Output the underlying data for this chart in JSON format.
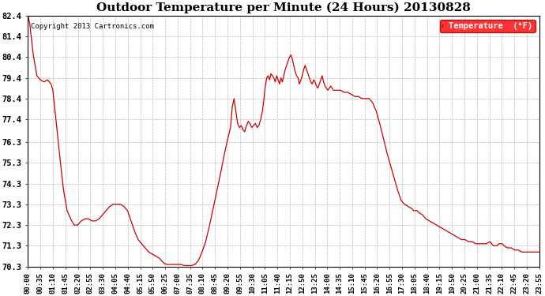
{
  "title": "Outdoor Temperature per Minute (24 Hours) 20130828",
  "copyright_text": "Copyright 2013 Cartronics.com",
  "legend_label": "Temperature  (°F)",
  "line_color": "#cc0000",
  "background_color": "#ffffff",
  "grid_color": "#bbbbbb",
  "ylim": [
    70.3,
    82.4
  ],
  "yticks": [
    70.3,
    71.3,
    72.3,
    73.3,
    74.3,
    75.3,
    76.3,
    77.4,
    78.4,
    79.4,
    80.4,
    81.4,
    82.4
  ],
  "xtick_labels": [
    "00:00",
    "00:35",
    "01:10",
    "01:45",
    "02:20",
    "02:55",
    "03:30",
    "04:05",
    "04:40",
    "05:15",
    "05:50",
    "06:25",
    "07:00",
    "07:35",
    "08:10",
    "08:45",
    "09:20",
    "09:55",
    "10:30",
    "11:05",
    "11:40",
    "12:15",
    "12:50",
    "13:25",
    "14:00",
    "14:35",
    "15:10",
    "15:45",
    "16:20",
    "16:55",
    "17:30",
    "18:05",
    "18:40",
    "19:15",
    "19:50",
    "20:25",
    "21:00",
    "21:35",
    "22:10",
    "22:45",
    "23:20",
    "23:55"
  ],
  "total_minutes": 1440,
  "key_points": [
    [
      0,
      82.4
    ],
    [
      5,
      82.0
    ],
    [
      15,
      80.5
    ],
    [
      25,
      79.5
    ],
    [
      35,
      79.3
    ],
    [
      45,
      79.2
    ],
    [
      55,
      79.3
    ],
    [
      65,
      79.1
    ],
    [
      70,
      78.8
    ],
    [
      80,
      77.2
    ],
    [
      90,
      75.5
    ],
    [
      100,
      74.0
    ],
    [
      110,
      73.0
    ],
    [
      120,
      72.6
    ],
    [
      130,
      72.3
    ],
    [
      140,
      72.3
    ],
    [
      150,
      72.5
    ],
    [
      160,
      72.6
    ],
    [
      170,
      72.6
    ],
    [
      180,
      72.5
    ],
    [
      190,
      72.5
    ],
    [
      200,
      72.6
    ],
    [
      210,
      72.8
    ],
    [
      220,
      73.0
    ],
    [
      230,
      73.2
    ],
    [
      240,
      73.3
    ],
    [
      250,
      73.3
    ],
    [
      260,
      73.3
    ],
    [
      270,
      73.2
    ],
    [
      280,
      73.0
    ],
    [
      290,
      72.5
    ],
    [
      300,
      72.0
    ],
    [
      310,
      71.6
    ],
    [
      320,
      71.4
    ],
    [
      330,
      71.2
    ],
    [
      340,
      71.0
    ],
    [
      350,
      70.9
    ],
    [
      360,
      70.8
    ],
    [
      370,
      70.7
    ],
    [
      380,
      70.5
    ],
    [
      390,
      70.4
    ],
    [
      400,
      70.4
    ],
    [
      410,
      70.4
    ],
    [
      420,
      70.4
    ],
    [
      430,
      70.4
    ],
    [
      440,
      70.35
    ],
    [
      450,
      70.35
    ],
    [
      460,
      70.35
    ],
    [
      470,
      70.4
    ],
    [
      480,
      70.6
    ],
    [
      490,
      71.0
    ],
    [
      500,
      71.5
    ],
    [
      510,
      72.2
    ],
    [
      520,
      73.0
    ],
    [
      530,
      73.8
    ],
    [
      540,
      74.6
    ],
    [
      550,
      75.5
    ],
    [
      560,
      76.3
    ],
    [
      570,
      77.0
    ],
    [
      575,
      78.0
    ],
    [
      580,
      78.4
    ],
    [
      585,
      77.8
    ],
    [
      590,
      77.2
    ],
    [
      595,
      77.0
    ],
    [
      600,
      77.1
    ],
    [
      605,
      76.9
    ],
    [
      610,
      76.8
    ],
    [
      615,
      77.1
    ],
    [
      620,
      77.3
    ],
    [
      625,
      77.2
    ],
    [
      630,
      77.0
    ],
    [
      640,
      77.2
    ],
    [
      645,
      77.0
    ],
    [
      650,
      77.1
    ],
    [
      655,
      77.4
    ],
    [
      660,
      77.8
    ],
    [
      665,
      78.5
    ],
    [
      668,
      79.0
    ],
    [
      672,
      79.4
    ],
    [
      676,
      79.5
    ],
    [
      680,
      79.3
    ],
    [
      684,
      79.6
    ],
    [
      688,
      79.5
    ],
    [
      692,
      79.4
    ],
    [
      696,
      79.2
    ],
    [
      700,
      79.5
    ],
    [
      704,
      79.3
    ],
    [
      708,
      79.1
    ],
    [
      712,
      79.4
    ],
    [
      716,
      79.2
    ],
    [
      720,
      79.5
    ],
    [
      724,
      79.8
    ],
    [
      728,
      80.0
    ],
    [
      732,
      80.2
    ],
    [
      736,
      80.4
    ],
    [
      740,
      80.5
    ],
    [
      744,
      80.3
    ],
    [
      748,
      80.0
    ],
    [
      752,
      79.7
    ],
    [
      756,
      79.5
    ],
    [
      760,
      79.4
    ],
    [
      764,
      79.1
    ],
    [
      768,
      79.3
    ],
    [
      772,
      79.5
    ],
    [
      776,
      79.8
    ],
    [
      780,
      80.0
    ],
    [
      784,
      79.8
    ],
    [
      788,
      79.6
    ],
    [
      792,
      79.4
    ],
    [
      796,
      79.2
    ],
    [
      800,
      79.1
    ],
    [
      804,
      79.3
    ],
    [
      808,
      79.2
    ],
    [
      812,
      79.0
    ],
    [
      816,
      78.9
    ],
    [
      820,
      79.1
    ],
    [
      824,
      79.3
    ],
    [
      828,
      79.5
    ],
    [
      832,
      79.2
    ],
    [
      836,
      79.0
    ],
    [
      840,
      78.9
    ],
    [
      844,
      78.8
    ],
    [
      848,
      78.9
    ],
    [
      852,
      79.0
    ],
    [
      856,
      78.9
    ],
    [
      860,
      78.8
    ],
    [
      864,
      78.8
    ],
    [
      870,
      78.8
    ],
    [
      880,
      78.8
    ],
    [
      890,
      78.7
    ],
    [
      900,
      78.7
    ],
    [
      910,
      78.6
    ],
    [
      920,
      78.5
    ],
    [
      930,
      78.5
    ],
    [
      940,
      78.4
    ],
    [
      950,
      78.4
    ],
    [
      960,
      78.4
    ],
    [
      970,
      78.2
    ],
    [
      980,
      77.8
    ],
    [
      990,
      77.2
    ],
    [
      1000,
      76.5
    ],
    [
      1010,
      75.8
    ],
    [
      1020,
      75.2
    ],
    [
      1030,
      74.6
    ],
    [
      1040,
      74.0
    ],
    [
      1050,
      73.5
    ],
    [
      1060,
      73.3
    ],
    [
      1070,
      73.2
    ],
    [
      1080,
      73.1
    ],
    [
      1085,
      73.0
    ],
    [
      1090,
      73.0
    ],
    [
      1095,
      73.0
    ],
    [
      1100,
      72.9
    ],
    [
      1110,
      72.8
    ],
    [
      1120,
      72.6
    ],
    [
      1130,
      72.5
    ],
    [
      1140,
      72.4
    ],
    [
      1150,
      72.3
    ],
    [
      1160,
      72.2
    ],
    [
      1170,
      72.1
    ],
    [
      1180,
      72.0
    ],
    [
      1190,
      71.9
    ],
    [
      1200,
      71.8
    ],
    [
      1210,
      71.7
    ],
    [
      1220,
      71.6
    ],
    [
      1230,
      71.6
    ],
    [
      1240,
      71.5
    ],
    [
      1250,
      71.5
    ],
    [
      1260,
      71.4
    ],
    [
      1270,
      71.4
    ],
    [
      1280,
      71.4
    ],
    [
      1290,
      71.4
    ],
    [
      1300,
      71.5
    ],
    [
      1305,
      71.4
    ],
    [
      1310,
      71.3
    ],
    [
      1320,
      71.3
    ],
    [
      1325,
      71.4
    ],
    [
      1330,
      71.4
    ],
    [
      1335,
      71.4
    ],
    [
      1340,
      71.3
    ],
    [
      1350,
      71.2
    ],
    [
      1360,
      71.2
    ],
    [
      1370,
      71.1
    ],
    [
      1380,
      71.1
    ],
    [
      1390,
      71.0
    ],
    [
      1400,
      71.0
    ],
    [
      1410,
      71.0
    ],
    [
      1420,
      71.0
    ],
    [
      1430,
      71.0
    ],
    [
      1439,
      71.0
    ]
  ]
}
